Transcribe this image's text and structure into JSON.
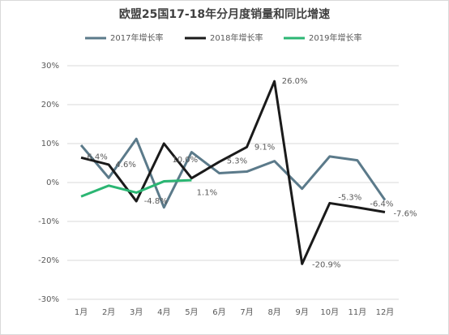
{
  "chart_data": {
    "type": "line",
    "title": "欧盟25国17-18年分月度销量和同比增速",
    "categories": [
      "1月",
      "2月",
      "3月",
      "4月",
      "5月",
      "6月",
      "7月",
      "8月",
      "9月",
      "10月",
      "11月",
      "12月"
    ],
    "series": [
      {
        "name": "2017年增长率",
        "color": "#5b7a8a",
        "values": [
          9.6,
          1.2,
          11.2,
          -6.4,
          7.8,
          2.4,
          2.8,
          5.5,
          -1.6,
          6.7,
          5.7,
          -4.5
        ]
      },
      {
        "name": "2018年增长率",
        "color": "#1a1a1a",
        "values": [
          6.4,
          4.6,
          -4.8,
          10.0,
          1.1,
          5.3,
          9.1,
          26.0,
          -20.9,
          -5.3,
          -6.4,
          -7.6
        ],
        "value_labels": [
          "6.4%",
          "4.6%",
          "-4.8%",
          "10.0%",
          "1.1%",
          "5.3%",
          "9.1%",
          "26.0%",
          "-20.9%",
          "-5.3%",
          "-6.4%",
          "-7.6%"
        ]
      },
      {
        "name": "2019年增长率",
        "color": "#2bb673",
        "values": [
          -3.6,
          -0.8,
          -2.6,
          0.3,
          0.6,
          null,
          null,
          null,
          null,
          null,
          null,
          null
        ]
      }
    ],
    "ylim": [
      -30,
      30
    ],
    "yticks": [
      {
        "value": -30,
        "label": "-30%"
      },
      {
        "value": -20,
        "label": "-20%"
      },
      {
        "value": -10,
        "label": "-10%"
      },
      {
        "value": 0,
        "label": "0%"
      },
      {
        "value": 10,
        "label": "10%"
      },
      {
        "value": 20,
        "label": "20%"
      },
      {
        "value": 30,
        "label": "30%"
      }
    ],
    "grid": true,
    "legend": "top"
  }
}
